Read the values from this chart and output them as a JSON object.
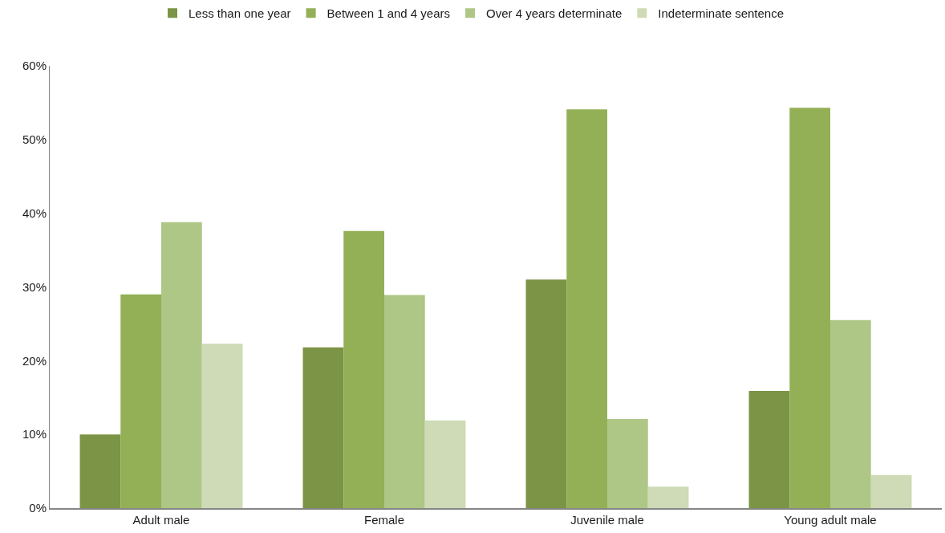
{
  "chart_data": {
    "type": "bar",
    "categories": [
      "Adult male",
      "Female",
      "Juvenile male",
      "Young adult male"
    ],
    "series": [
      {
        "name": "Less than one year",
        "color": "#7b9445",
        "values": [
          10.0,
          21.8,
          31.0,
          15.9
        ]
      },
      {
        "name": "Between 1 and 4 years",
        "color": "#93b057",
        "values": [
          29.0,
          37.6,
          54.1,
          54.3
        ]
      },
      {
        "name": "Over 4 years determinate",
        "color": "#aec686",
        "values": [
          38.8,
          28.9,
          12.1,
          25.5
        ]
      },
      {
        "name": "Indeterminate sentence",
        "color": "#cedbb6",
        "values": [
          22.3,
          11.9,
          2.9,
          4.5
        ]
      }
    ],
    "ylim": [
      0,
      60
    ],
    "yticks": [
      {
        "value": 0,
        "label": "0%"
      },
      {
        "value": 10,
        "label": "10%"
      },
      {
        "value": 20,
        "label": "20%"
      },
      {
        "value": 30,
        "label": "30%"
      },
      {
        "value": 40,
        "label": "40%"
      },
      {
        "value": 50,
        "label": "50%"
      },
      {
        "value": 60,
        "label": "60%"
      }
    ],
    "grid": false,
    "legend": "top"
  }
}
